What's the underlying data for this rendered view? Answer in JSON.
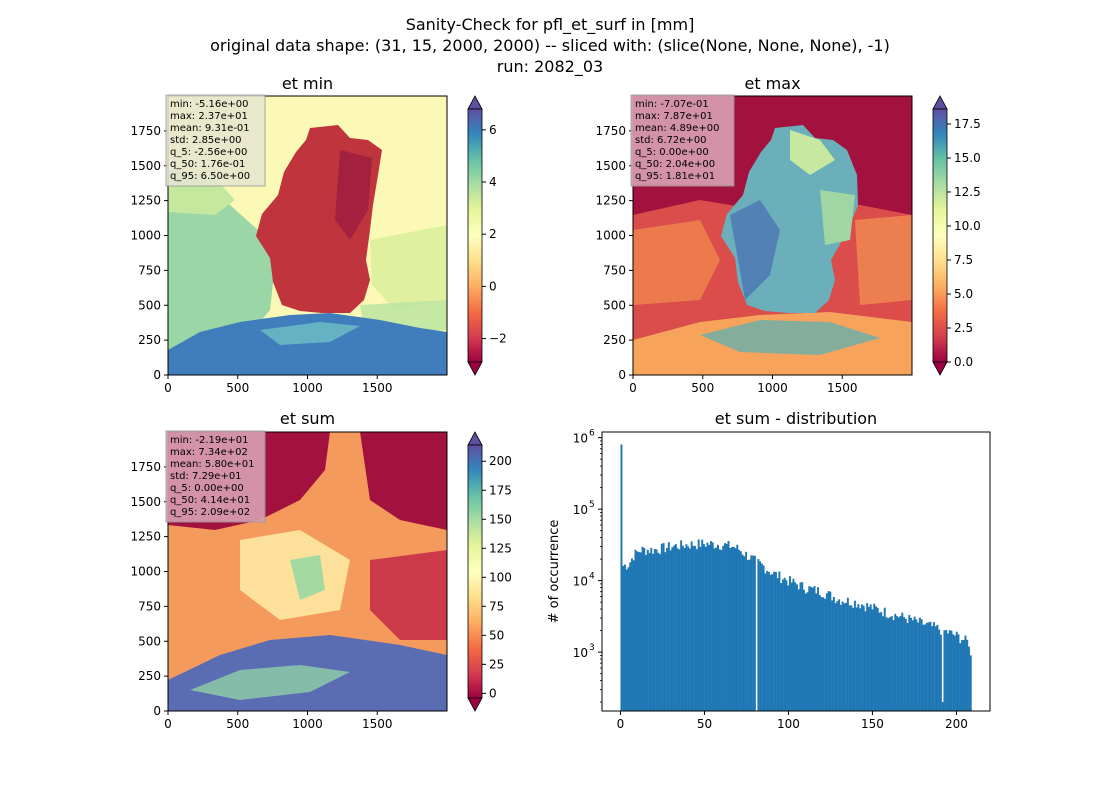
{
  "figure": {
    "title_lines": [
      "Sanity-Check for pfl_et_surf in [mm]",
      "original data shape: (31, 15, 2000, 2000) -- sliced with: (slice(None, None, None), -1)",
      "run: 2082_03"
    ]
  },
  "chart_data": [
    {
      "type": "heatmap",
      "title": "et min",
      "colormap": "Spectral",
      "xlim": [
        0,
        2000
      ],
      "ylim": [
        0,
        2000
      ],
      "xticks": [
        "0",
        "500",
        "1000",
        "1500"
      ],
      "yticks": [
        "0",
        "250",
        "500",
        "750",
        "1000",
        "1250",
        "1500",
        "1750"
      ],
      "colorbar": {
        "range": [
          -2.9,
          6.8
        ],
        "ticks": [
          "−2",
          "0",
          "2",
          "4",
          "6"
        ],
        "tick_values": [
          -2,
          0,
          2,
          4,
          6
        ],
        "extend": "both"
      },
      "stats": [
        "min: -5.16e+00",
        "max: 2.37e+01",
        "mean: 9.31e-01",
        "std: 2.85e+00",
        "q_5: -2.56e+00",
        "q_50: 1.76e-01",
        "q_95: 6.50e+00"
      ],
      "stats_box_color": "#e6e6d2"
    },
    {
      "type": "heatmap",
      "title": "et max",
      "colormap": "Spectral",
      "xlim": [
        0,
        2000
      ],
      "ylim": [
        0,
        2000
      ],
      "xticks": [
        "0",
        "500",
        "1000",
        "1500"
      ],
      "yticks": [
        "0",
        "250",
        "500",
        "750",
        "1000",
        "1250",
        "1500",
        "1750"
      ],
      "colorbar": {
        "range": [
          0,
          18.6
        ],
        "ticks": [
          "0.0",
          "2.5",
          "5.0",
          "7.5",
          "10.0",
          "12.5",
          "15.0",
          "17.5"
        ],
        "tick_values": [
          0,
          2.5,
          5,
          7.5,
          10,
          12.5,
          15,
          17.5
        ],
        "extend": "both"
      },
      "stats": [
        "min: -7.07e-01",
        "max: 7.87e+01",
        "mean: 4.89e+00",
        "std: 6.72e+00",
        "q_5: 0.00e+00",
        "q_50: 2.04e+00",
        "q_95: 1.81e+01"
      ],
      "stats_box_color": "#d9a0b4"
    },
    {
      "type": "heatmap",
      "title": "et sum",
      "colormap": "Spectral",
      "xlim": [
        0,
        2000
      ],
      "ylim": [
        0,
        2000
      ],
      "xticks": [
        "0",
        "500",
        "1000",
        "1500"
      ],
      "yticks": [
        "0",
        "250",
        "500",
        "750",
        "1000",
        "1250",
        "1500",
        "1750"
      ],
      "colorbar": {
        "range": [
          -4,
          214
        ],
        "ticks": [
          "0",
          "25",
          "50",
          "75",
          "100",
          "125",
          "150",
          "175",
          "200"
        ],
        "tick_values": [
          0,
          25,
          50,
          75,
          100,
          125,
          150,
          175,
          200
        ],
        "extend": "both"
      },
      "stats": [
        "min: -2.19e+01",
        "max: 7.34e+02",
        "mean: 5.80e+01",
        "std: 7.29e+01",
        "q_5: 0.00e+00",
        "q_50: 4.14e+01",
        "q_95: 2.09e+02"
      ],
      "stats_box_color": "#d9a0b4"
    },
    {
      "type": "bar",
      "title": "et sum - distribution",
      "ylabel": "# of occurrence",
      "yscale": "log",
      "xlim": [
        -11,
        220
      ],
      "ylim": [
        150,
        1200000
      ],
      "xticks": [
        0,
        50,
        100,
        150,
        200
      ],
      "yticks": [
        {
          "value": 1000,
          "label": "10",
          "exp": "3"
        },
        {
          "value": 10000,
          "label": "10",
          "exp": "4"
        },
        {
          "value": 100000,
          "label": "10",
          "exp": "5"
        },
        {
          "value": 1000000,
          "label": "10",
          "exp": "6"
        }
      ],
      "color": "#1f77b4",
      "bins": {
        "start": 0,
        "end": 209,
        "count": 200
      },
      "anchors": [
        [
          0,
          800000
        ],
        [
          1,
          16000
        ],
        [
          3,
          16500
        ],
        [
          5,
          17000
        ],
        [
          8,
          23000
        ],
        [
          12,
          27000
        ],
        [
          20,
          27000
        ],
        [
          30,
          30000
        ],
        [
          40,
          32000
        ],
        [
          50,
          33000
        ],
        [
          60,
          32000
        ],
        [
          67,
          30000
        ],
        [
          70,
          28000
        ],
        [
          75,
          23000
        ],
        [
          80,
          19000
        ],
        [
          85,
          16000
        ],
        [
          90,
          13000
        ],
        [
          100,
          10000
        ],
        [
          110,
          8000
        ],
        [
          120,
          7000
        ],
        [
          130,
          5500
        ],
        [
          140,
          5000
        ],
        [
          150,
          4200
        ],
        [
          160,
          3500
        ],
        [
          170,
          3000
        ],
        [
          180,
          2500
        ],
        [
          190,
          2100
        ],
        [
          200,
          1700
        ],
        [
          209,
          1300
        ]
      ],
      "dips": [
        [
          80.8,
          0
        ],
        [
          191.5,
          200
        ],
        [
          209,
          900
        ]
      ]
    }
  ]
}
